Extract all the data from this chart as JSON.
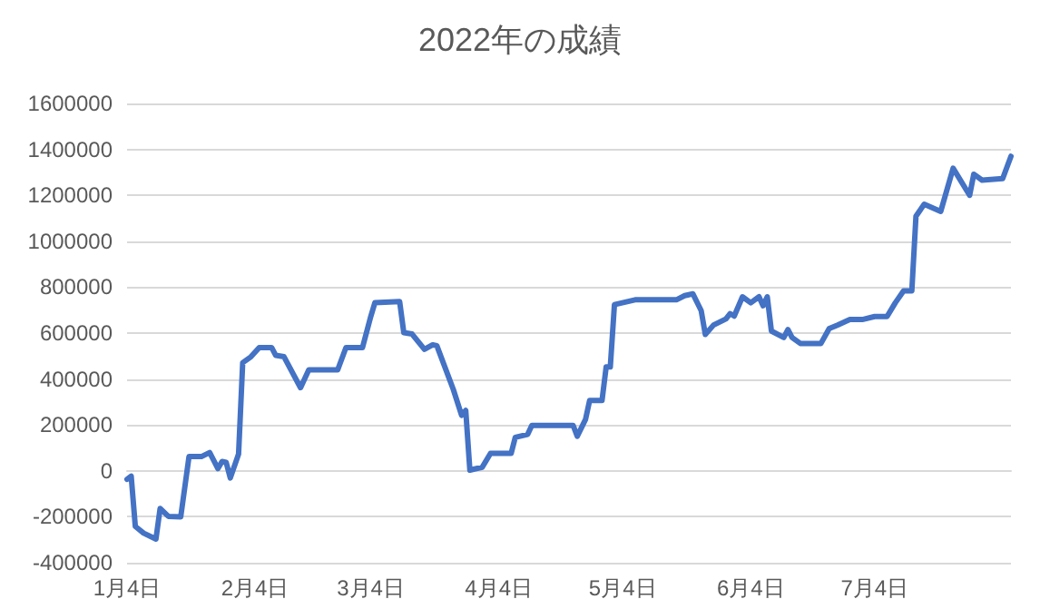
{
  "chart_data": {
    "type": "line",
    "title": "2022年の成績",
    "x": [
      "2022-01-04",
      "2022-01-05",
      "2022-01-06",
      "2022-01-08",
      "2022-01-11",
      "2022-01-12",
      "2022-01-14",
      "2022-01-17",
      "2022-01-19",
      "2022-01-22",
      "2022-01-24",
      "2022-01-26",
      "2022-01-27",
      "2022-01-28",
      "2022-01-29",
      "2022-01-31",
      "2022-02-01",
      "2022-02-03",
      "2022-02-05",
      "2022-02-08",
      "2022-02-09",
      "2022-02-11",
      "2022-02-15",
      "2022-02-17",
      "2022-02-24",
      "2022-02-26",
      "2022-03-02",
      "2022-03-04",
      "2022-03-05",
      "2022-03-11",
      "2022-03-12",
      "2022-03-14",
      "2022-03-17",
      "2022-03-19",
      "2022-03-20",
      "2022-03-24",
      "2022-03-26",
      "2022-03-27",
      "2022-03-28",
      "2022-03-31",
      "2022-04-02",
      "2022-04-07",
      "2022-04-08",
      "2022-04-11",
      "2022-04-12",
      "2022-04-22",
      "2022-04-23",
      "2022-04-25",
      "2022-04-26",
      "2022-04-29",
      "2022-04-30",
      "2022-05-01",
      "2022-05-02",
      "2022-05-07",
      "2022-05-17",
      "2022-05-19",
      "2022-05-21",
      "2022-05-23",
      "2022-05-24",
      "2022-05-26",
      "2022-05-29",
      "2022-05-30",
      "2022-05-31",
      "2022-06-02",
      "2022-06-04",
      "2022-06-06",
      "2022-06-07",
      "2022-06-08",
      "2022-06-09",
      "2022-06-12",
      "2022-06-13",
      "2022-06-14",
      "2022-06-16",
      "2022-06-21",
      "2022-06-23",
      "2022-06-25",
      "2022-06-28",
      "2022-07-01",
      "2022-07-04",
      "2022-07-07",
      "2022-07-09",
      "2022-07-11",
      "2022-07-13",
      "2022-07-14",
      "2022-07-16",
      "2022-07-20",
      "2022-07-23",
      "2022-07-27",
      "2022-07-28",
      "2022-07-30",
      "2022-08-04",
      "2022-08-06"
    ],
    "series": [
      {
        "color": "#4472c4",
        "values": [
          -37000,
          -23000,
          -242000,
          -271000,
          -297000,
          -164000,
          -198000,
          -200000,
          62000,
          62000,
          80000,
          10000,
          41000,
          37000,
          -31000,
          73000,
          471000,
          497000,
          537000,
          537000,
          503000,
          497000,
          362000,
          440000,
          440000,
          537000,
          537000,
          672000,
          732000,
          737000,
          602000,
          596000,
          529000,
          549000,
          545000,
          354000,
          242000,
          263000,
          3000,
          16000,
          76000,
          76000,
          146000,
          159000,
          198000,
          198000,
          151000,
          224000,
          307000,
          307000,
          453000,
          453000,
          724000,
          745000,
          745000,
          763000,
          771000,
          698000,
          594000,
          635000,
          662000,
          685000,
          674000,
          758000,
          732000,
          758000,
          719000,
          758000,
          609000,
          581000,
          615000,
          581000,
          555000,
          555000,
          620000,
          635000,
          659000,
          659000,
          672000,
          672000,
          732000,
          784000,
          784000,
          1109000,
          1161000,
          1130000,
          1318000,
          1200000,
          1292000,
          1266000,
          1273000,
          1370000
        ]
      }
    ],
    "xlim": [
      "2022-01-04",
      "2022-08-06"
    ],
    "xticks": [
      {
        "value": "2022-01-04",
        "label": "1月4日"
      },
      {
        "value": "2022-02-04",
        "label": "2月4日"
      },
      {
        "value": "2022-03-04",
        "label": "3月4日"
      },
      {
        "value": "2022-04-04",
        "label": "4月4日"
      },
      {
        "value": "2022-05-04",
        "label": "5月4日"
      },
      {
        "value": "2022-06-04",
        "label": "6月4日"
      },
      {
        "value": "2022-07-04",
        "label": "7月4日"
      }
    ],
    "ylim": [
      -400000,
      1600000
    ],
    "yticks": [
      -400000,
      -200000,
      0,
      200000,
      400000,
      600000,
      800000,
      1000000,
      1200000,
      1400000,
      1600000
    ],
    "grid": "y",
    "marker": "none",
    "line_style": "solid"
  }
}
